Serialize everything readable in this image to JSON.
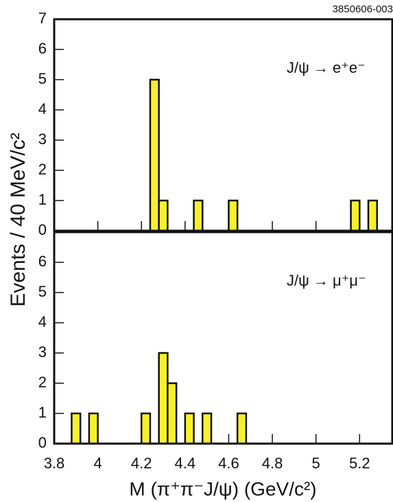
{
  "figure_label": "3850606-003",
  "ylabel": "Events / 40 MeV/c²",
  "xlabel": "M (π⁺π⁻J/ψ) (GeV/c²)",
  "chart_data": [
    {
      "type": "histogram",
      "annotation": "J/ψ → e⁺e⁻",
      "color": "#f7f02c",
      "bins": [
        3.8,
        3.84,
        3.88,
        3.92,
        3.96,
        4,
        4.04,
        4.08,
        4.12,
        4.16,
        4.2,
        4.24,
        4.28,
        4.32,
        4.36,
        4.4,
        4.44,
        4.48,
        4.52,
        4.56,
        4.6,
        4.64,
        4.68,
        4.72,
        4.76,
        4.8,
        4.84,
        4.88,
        4.92,
        4.96,
        5,
        5.04,
        5.08,
        5.12,
        5.16,
        5.2,
        5.24,
        5.28,
        5.32
      ],
      "values": [
        0,
        0,
        0,
        0,
        0,
        0,
        0,
        0,
        0,
        0,
        0,
        5,
        1,
        0,
        0,
        0,
        1,
        0,
        0,
        0,
        1,
        0,
        0,
        0,
        0,
        0,
        0,
        0,
        0,
        0,
        0,
        0,
        0,
        0,
        1,
        0,
        1,
        0
      ],
      "xlim": [
        3.8,
        5.35
      ],
      "ylim": [
        0,
        7
      ],
      "yticks": [
        0,
        1,
        2,
        3,
        4,
        5,
        6,
        7
      ],
      "xticks": [
        3.8,
        4,
        4.2,
        4.4,
        4.6,
        4.8,
        5,
        5.2
      ],
      "show_xtick_labels": false
    },
    {
      "type": "histogram",
      "annotation": "J/ψ → μ⁺μ⁻",
      "color": "#f7f02c",
      "bins": [
        3.8,
        3.84,
        3.88,
        3.92,
        3.96,
        4,
        4.04,
        4.08,
        4.12,
        4.16,
        4.2,
        4.24,
        4.28,
        4.32,
        4.36,
        4.4,
        4.44,
        4.48,
        4.52,
        4.56,
        4.6,
        4.64,
        4.68,
        4.72,
        4.76,
        4.8,
        4.84,
        4.88,
        4.92,
        4.96,
        5,
        5.04,
        5.08,
        5.12,
        5.16,
        5.2,
        5.24,
        5.28,
        5.32
      ],
      "values": [
        0,
        0,
        1,
        0,
        1,
        0,
        0,
        0,
        0,
        0,
        1,
        0,
        3,
        2,
        0,
        1,
        0,
        1,
        0,
        0,
        0,
        1,
        0,
        0,
        0,
        0,
        0,
        0,
        0,
        0,
        0,
        0,
        0,
        0,
        0,
        0,
        0,
        0
      ],
      "xlim": [
        3.8,
        5.35
      ],
      "ylim": [
        0,
        7
      ],
      "yticks": [
        0,
        1,
        2,
        3,
        4,
        5,
        6
      ],
      "xticks": [
        3.8,
        4,
        4.2,
        4.4,
        4.6,
        4.8,
        5,
        5.2
      ],
      "show_xtick_labels": true
    }
  ]
}
